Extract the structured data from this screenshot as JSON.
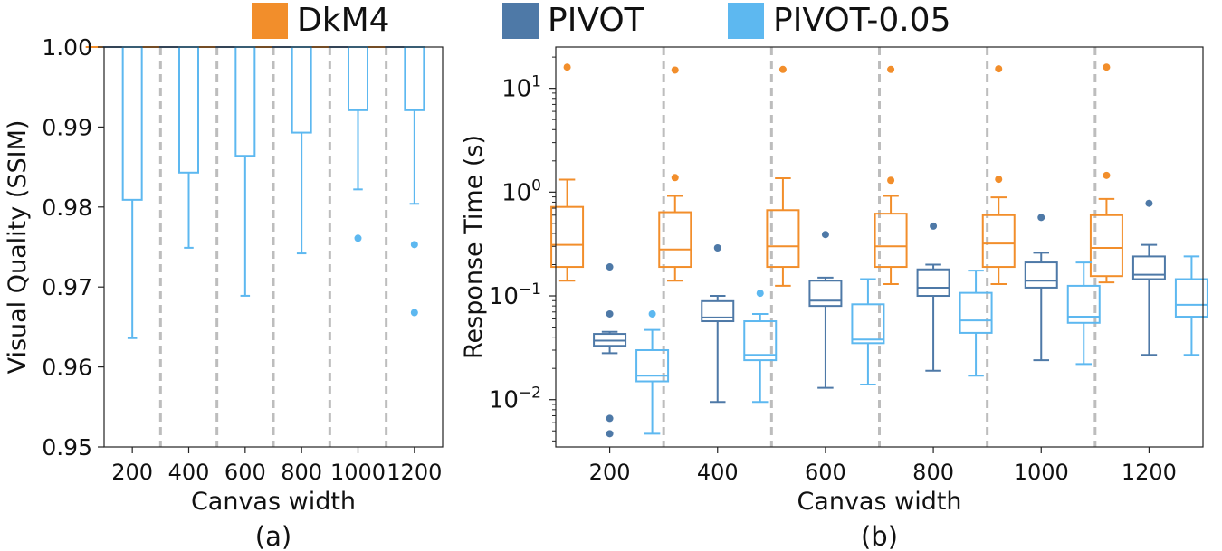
{
  "legend": {
    "items": [
      {
        "label": "DkM4",
        "color": "#F28E2B"
      },
      {
        "label": "PIVOT",
        "color": "#4E79A7"
      },
      {
        "label": "PIVOT-0.05",
        "color": "#5DB8F0"
      }
    ]
  },
  "chart_data": [
    {
      "type": "box",
      "panel_label": "(a)",
      "xlabel": "Canvas width",
      "ylabel": "Visual Quality (SSIM)",
      "ylim": [
        0.95,
        1.0
      ],
      "yscale": "linear",
      "yticks": [
        "0.95",
        "0.96",
        "0.97",
        "0.98",
        "0.99",
        "1.00"
      ],
      "categories": [
        "200",
        "400",
        "600",
        "800",
        "1000",
        "1200"
      ],
      "series": [
        {
          "name": "DkM4",
          "color": "#F28E2B",
          "boxes": [
            {
              "whislo": 1.0,
              "q1": 1.0,
              "med": 1.0,
              "q3": 1.0,
              "whishi": 1.0,
              "fliers": []
            },
            {
              "whislo": 1.0,
              "q1": 1.0,
              "med": 1.0,
              "q3": 1.0,
              "whishi": 1.0,
              "fliers": []
            },
            {
              "whislo": 1.0,
              "q1": 1.0,
              "med": 1.0,
              "q3": 1.0,
              "whishi": 1.0,
              "fliers": []
            },
            {
              "whislo": 1.0,
              "q1": 1.0,
              "med": 1.0,
              "q3": 1.0,
              "whishi": 1.0,
              "fliers": []
            },
            {
              "whislo": 1.0,
              "q1": 1.0,
              "med": 1.0,
              "q3": 1.0,
              "whishi": 1.0,
              "fliers": []
            },
            {
              "whislo": 1.0,
              "q1": 1.0,
              "med": 1.0,
              "q3": 1.0,
              "whishi": 1.0,
              "fliers": []
            }
          ]
        },
        {
          "name": "PIVOT",
          "color": "#4E79A7",
          "boxes": [
            {
              "whislo": 1.0,
              "q1": 1.0,
              "med": 1.0,
              "q3": 1.0,
              "whishi": 1.0,
              "fliers": []
            },
            {
              "whislo": 1.0,
              "q1": 1.0,
              "med": 1.0,
              "q3": 1.0,
              "whishi": 1.0,
              "fliers": []
            },
            {
              "whislo": 1.0,
              "q1": 1.0,
              "med": 1.0,
              "q3": 1.0,
              "whishi": 1.0,
              "fliers": []
            },
            {
              "whislo": 1.0,
              "q1": 1.0,
              "med": 1.0,
              "q3": 1.0,
              "whishi": 1.0,
              "fliers": []
            },
            {
              "whislo": 1.0,
              "q1": 1.0,
              "med": 1.0,
              "q3": 1.0,
              "whishi": 1.0,
              "fliers": []
            },
            {
              "whislo": 1.0,
              "q1": 1.0,
              "med": 1.0,
              "q3": 1.0,
              "whishi": 1.0,
              "fliers": []
            }
          ]
        },
        {
          "name": "PIVOT-0.05",
          "color": "#5DB8F0",
          "boxes": [
            {
              "whislo": 0.9636,
              "q1": 0.9809,
              "med": 1.0,
              "q3": 1.0,
              "whishi": 1.0,
              "fliers": []
            },
            {
              "whislo": 0.9749,
              "q1": 0.9843,
              "med": 1.0,
              "q3": 1.0,
              "whishi": 1.0,
              "fliers": []
            },
            {
              "whislo": 0.9689,
              "q1": 0.9864,
              "med": 1.0,
              "q3": 1.0,
              "whishi": 1.0,
              "fliers": []
            },
            {
              "whislo": 0.9742,
              "q1": 0.9893,
              "med": 1.0,
              "q3": 1.0,
              "whishi": 1.0,
              "fliers": []
            },
            {
              "whislo": 0.9822,
              "q1": 0.9921,
              "med": 1.0,
              "q3": 1.0,
              "whishi": 1.0,
              "fliers": [
                0.9761
              ]
            },
            {
              "whislo": 0.9804,
              "q1": 0.9921,
              "med": 1.0,
              "q3": 1.0,
              "whishi": 1.0,
              "fliers": [
                0.9753,
                0.9668
              ]
            }
          ]
        }
      ]
    },
    {
      "type": "box",
      "panel_label": "(b)",
      "xlabel": "Canvas width",
      "ylabel": "Response Time (s)",
      "yscale": "log",
      "ylim": [
        0.0035,
        25
      ],
      "yticks": [
        {
          "value": 0.01,
          "base": "10",
          "exp": "−2"
        },
        {
          "value": 0.1,
          "base": "10",
          "exp": "−1"
        },
        {
          "value": 1,
          "base": "10",
          "exp": "0"
        },
        {
          "value": 10,
          "base": "10",
          "exp": "1"
        }
      ],
      "categories": [
        "200",
        "400",
        "600",
        "800",
        "1000",
        "1200"
      ],
      "series": [
        {
          "name": "DkM4",
          "color": "#F28E2B",
          "boxes": [
            {
              "whislo": 0.14,
              "q1": 0.19,
              "med": 0.31,
              "q3": 0.72,
              "whishi": 1.32,
              "fliers": [
                16.0
              ]
            },
            {
              "whislo": 0.14,
              "q1": 0.19,
              "med": 0.28,
              "q3": 0.64,
              "whishi": 0.92,
              "fliers": [
                1.38,
                15.0
              ]
            },
            {
              "whislo": 0.125,
              "q1": 0.19,
              "med": 0.3,
              "q3": 0.67,
              "whishi": 1.36,
              "fliers": [
                15.2
              ]
            },
            {
              "whislo": 0.13,
              "q1": 0.19,
              "med": 0.3,
              "q3": 0.62,
              "whishi": 0.92,
              "fliers": [
                1.3,
                15.2
              ]
            },
            {
              "whislo": 0.13,
              "q1": 0.19,
              "med": 0.32,
              "q3": 0.6,
              "whishi": 0.89,
              "fliers": [
                1.33,
                15.4
              ]
            },
            {
              "whislo": 0.135,
              "q1": 0.155,
              "med": 0.29,
              "q3": 0.6,
              "whishi": 0.86,
              "fliers": [
                1.45,
                16.0
              ]
            }
          ]
        },
        {
          "name": "PIVOT",
          "color": "#4E79A7",
          "boxes": [
            {
              "whislo": 0.028,
              "q1": 0.033,
              "med": 0.037,
              "q3": 0.043,
              "whishi": 0.045,
              "fliers": [
                0.19,
                0.067,
                0.0066,
                0.0047
              ]
            },
            {
              "whislo": 0.0095,
              "q1": 0.057,
              "med": 0.062,
              "q3": 0.089,
              "whishi": 0.1,
              "fliers": [
                0.29
              ]
            },
            {
              "whislo": 0.013,
              "q1": 0.08,
              "med": 0.09,
              "q3": 0.14,
              "whishi": 0.15,
              "fliers": [
                0.39
              ]
            },
            {
              "whislo": 0.019,
              "q1": 0.1,
              "med": 0.12,
              "q3": 0.18,
              "whishi": 0.2,
              "fliers": [
                0.47
              ]
            },
            {
              "whislo": 0.024,
              "q1": 0.12,
              "med": 0.14,
              "q3": 0.21,
              "whishi": 0.26,
              "fliers": [
                0.57
              ]
            },
            {
              "whislo": 0.027,
              "q1": 0.145,
              "med": 0.16,
              "q3": 0.24,
              "whishi": 0.31,
              "fliers": [
                0.78
              ]
            }
          ]
        },
        {
          "name": "PIVOT-0.05",
          "color": "#5DB8F0",
          "boxes": [
            {
              "whislo": 0.0047,
              "q1": 0.015,
              "med": 0.017,
              "q3": 0.03,
              "whishi": 0.047,
              "fliers": [
                0.067
              ]
            },
            {
              "whislo": 0.0095,
              "q1": 0.024,
              "med": 0.027,
              "q3": 0.057,
              "whishi": 0.067,
              "fliers": [
                0.106
              ]
            },
            {
              "whislo": 0.014,
              "q1": 0.035,
              "med": 0.038,
              "q3": 0.083,
              "whishi": 0.145,
              "fliers": []
            },
            {
              "whislo": 0.017,
              "q1": 0.044,
              "med": 0.058,
              "q3": 0.107,
              "whishi": 0.175,
              "fliers": []
            },
            {
              "whislo": 0.022,
              "q1": 0.055,
              "med": 0.063,
              "q3": 0.125,
              "whishi": 0.21,
              "fliers": []
            },
            {
              "whislo": 0.027,
              "q1": 0.063,
              "med": 0.082,
              "q3": 0.145,
              "whishi": 0.24,
              "fliers": []
            }
          ]
        }
      ]
    }
  ]
}
